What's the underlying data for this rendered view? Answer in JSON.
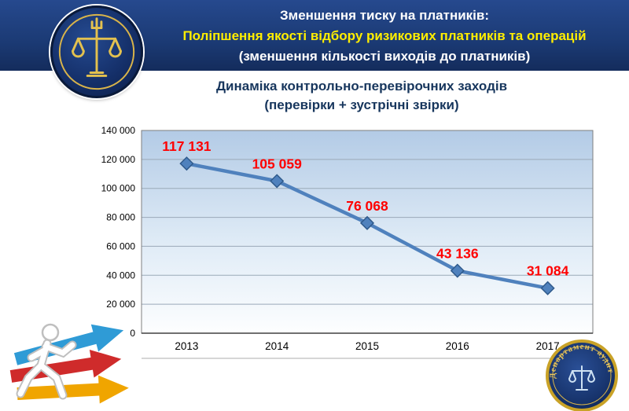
{
  "header": {
    "title_line1": "Зменшення тиску на платників:",
    "title_line2": "Поліпшення якості відбору ризикових платників та операцій",
    "title_line3": "(зменшення кількості виходів до платників)"
  },
  "chart_title": {
    "line1": "Динаміка контрольно-перевірочних заходів",
    "line2": "(перевірки + зустрічні звірки)"
  },
  "chart_data": {
    "type": "line",
    "categories": [
      "2013",
      "2014",
      "2015",
      "2016",
      "2017"
    ],
    "values": [
      117131,
      105059,
      76068,
      43136,
      31084
    ],
    "value_labels": [
      "117 131",
      "105 059",
      "76 068",
      "43 136",
      "31 084"
    ],
    "y_ticks": [
      0,
      20000,
      40000,
      60000,
      80000,
      100000,
      120000,
      140000
    ],
    "y_tick_labels": [
      "0",
      "20 000",
      "40 000",
      "60 000",
      "80 000",
      "100 000",
      "120 000",
      "140 000"
    ],
    "ylim": [
      0,
      140000
    ],
    "grid": true,
    "legend": "none",
    "line_color": "#4f81bd",
    "marker": "diamond",
    "marker_edge_color": "#2f5a8c",
    "label_color": "#ff0000"
  },
  "stamp": {
    "text": "Департамент аудиту"
  },
  "colors": {
    "header_bg": "#1b3a74",
    "accent_yellow": "#ffee00",
    "value_red": "#ff0000",
    "line_blue": "#4f81bd",
    "title_navy": "#17365d"
  }
}
